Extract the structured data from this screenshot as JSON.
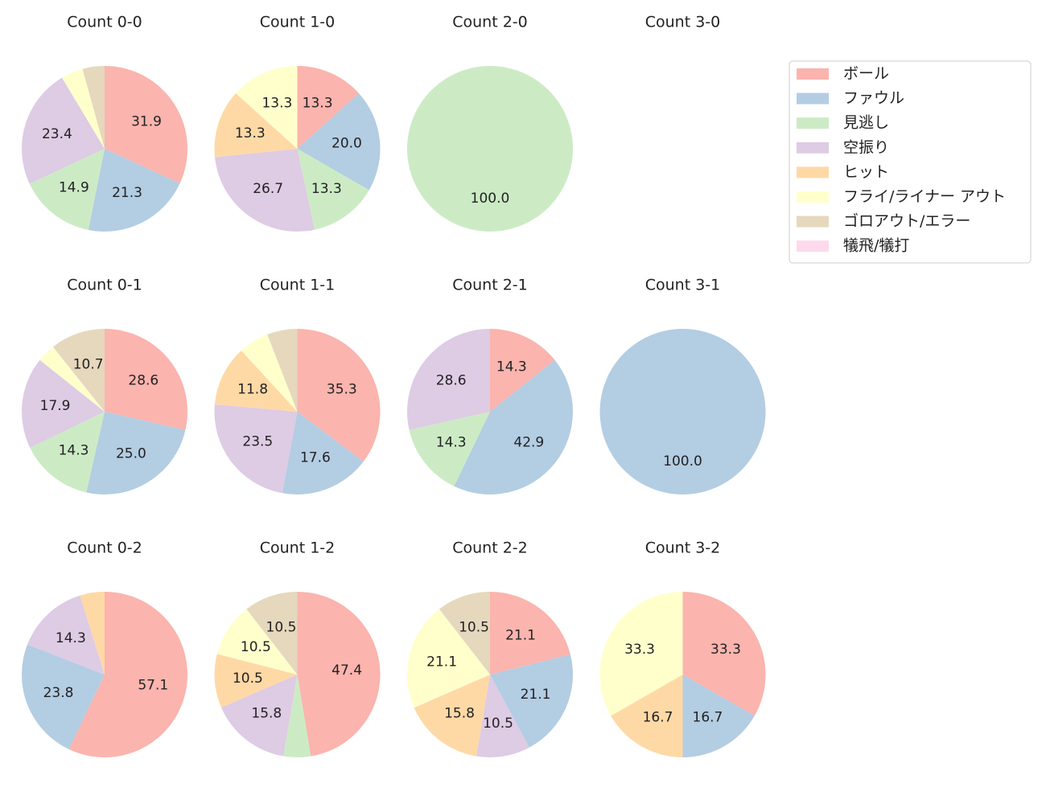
{
  "legend": {
    "position": "upper right",
    "series": [
      {
        "name": "ボール",
        "color": "#fbb4ae"
      },
      {
        "name": "ファウル",
        "color": "#b3cde3"
      },
      {
        "name": "見逃し",
        "color": "#ccebc5"
      },
      {
        "name": "空振り",
        "color": "#decbe4"
      },
      {
        "name": "ヒット",
        "color": "#fed9a6"
      },
      {
        "name": "フライ/ライナー アウト",
        "color": "#ffffcc"
      },
      {
        "name": "ゴロアウト/エラー",
        "color": "#e5d8bd"
      },
      {
        "name": "犠飛/犠打",
        "color": "#fddaec"
      }
    ]
  },
  "chart_data": [
    {
      "type": "pie",
      "title": "Count 0-0",
      "values": [
        31.9,
        21.3,
        14.9,
        23.4,
        0,
        4.3,
        4.3,
        0
      ],
      "value_labels": [
        "31.9",
        "21.3",
        "14.9",
        "23.4",
        null,
        null,
        null,
        null
      ]
    },
    {
      "type": "pie",
      "title": "Count 1-0",
      "values": [
        13.3,
        20.0,
        13.3,
        26.7,
        13.3,
        13.3,
        0,
        0
      ],
      "value_labels": [
        "13.3",
        "20.0",
        "13.3",
        "26.7",
        "13.3",
        "13.3",
        null,
        null
      ]
    },
    {
      "type": "pie",
      "title": "Count 2-0",
      "values": [
        0,
        0,
        100,
        0,
        0,
        0,
        0,
        0
      ],
      "value_labels": [
        null,
        null,
        "100.0",
        null,
        null,
        null,
        null,
        null
      ]
    },
    {
      "type": "pie",
      "title": "Count 3-0",
      "values": [
        0,
        0,
        0,
        0,
        0,
        0,
        0,
        0
      ],
      "value_labels": [
        null,
        null,
        null,
        null,
        null,
        null,
        null,
        null
      ]
    },
    {
      "type": "pie",
      "title": "Count 0-1",
      "values": [
        28.6,
        25.0,
        14.3,
        17.9,
        0,
        3.6,
        10.7,
        0
      ],
      "value_labels": [
        "28.6",
        "25.0",
        "14.3",
        "17.9",
        null,
        null,
        "10.7",
        null
      ]
    },
    {
      "type": "pie",
      "title": "Count 1-1",
      "values": [
        35.3,
        17.6,
        0,
        23.5,
        11.8,
        5.9,
        5.9,
        0
      ],
      "value_labels": [
        "35.3",
        "17.6",
        null,
        "23.5",
        "11.8",
        null,
        null,
        null
      ]
    },
    {
      "type": "pie",
      "title": "Count 2-1",
      "values": [
        14.3,
        42.9,
        14.3,
        28.6,
        0,
        0,
        0,
        0
      ],
      "value_labels": [
        "14.3",
        "42.9",
        "14.3",
        "28.6",
        null,
        null,
        null,
        null
      ]
    },
    {
      "type": "pie",
      "title": "Count 3-1",
      "values": [
        0,
        100,
        0,
        0,
        0,
        0,
        0,
        0
      ],
      "value_labels": [
        null,
        "100.0",
        null,
        null,
        null,
        null,
        null,
        null
      ]
    },
    {
      "type": "pie",
      "title": "Count 0-2",
      "values": [
        57.1,
        23.8,
        0,
        14.3,
        4.8,
        0,
        0,
        0
      ],
      "value_labels": [
        "57.1",
        "23.8",
        null,
        "14.3",
        null,
        null,
        null,
        null
      ]
    },
    {
      "type": "pie",
      "title": "Count 1-2",
      "values": [
        47.4,
        0,
        5.3,
        15.8,
        10.5,
        10.5,
        10.5,
        0
      ],
      "value_labels": [
        "47.4",
        null,
        null,
        "15.8",
        "10.5",
        "10.5",
        "10.5",
        null
      ]
    },
    {
      "type": "pie",
      "title": "Count 2-2",
      "values": [
        21.1,
        21.1,
        0,
        10.5,
        15.8,
        21.1,
        10.5,
        0
      ],
      "value_labels": [
        "21.1",
        "21.1",
        null,
        "10.5",
        "15.8",
        "21.1",
        "10.5",
        null
      ]
    },
    {
      "type": "pie",
      "title": "Count 3-2",
      "values": [
        33.3,
        16.7,
        0,
        0,
        16.7,
        33.3,
        0,
        0
      ],
      "value_labels": [
        "33.3",
        "16.7",
        null,
        null,
        "16.7",
        "33.3",
        null,
        null
      ]
    }
  ]
}
